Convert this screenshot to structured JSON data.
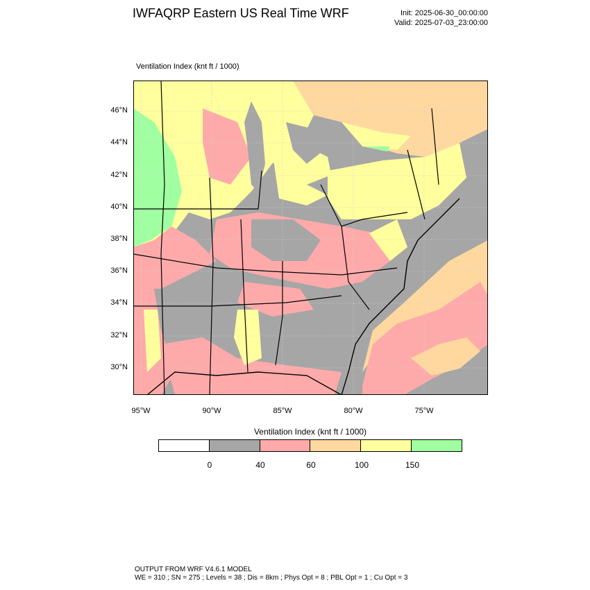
{
  "header": {
    "title": "IWFAQRP Eastern US Real Time WRF",
    "init": "Init: 2025-06-30_00:00:00",
    "valid": "Valid: 2025-07-03_23:00:00"
  },
  "map": {
    "subtitle": "Ventilation Index   (knt ft / 1000)",
    "lat_labels": [
      "46°N",
      "44°N",
      "42°N",
      "40°N",
      "38°N",
      "36°N",
      "34°N",
      "32°N",
      "30°N"
    ],
    "lon_labels": [
      "95°W",
      "90°W",
      "85°W",
      "80°W",
      "75°W"
    ]
  },
  "colorbar": {
    "title": "Ventilation Index  (knt ft / 1000)",
    "colors": [
      "#ffffff",
      "#a6a6a6",
      "#ffaaaa",
      "#ffd8a0",
      "#ffff9e",
      "#a0ffa0"
    ],
    "ticks": [
      "0",
      "40",
      "60",
      "100",
      "150"
    ]
  },
  "legend_colors": {
    "land_gray": "#a6a6a6",
    "pink": "#ffaaaa",
    "orange": "#ffd8a0",
    "yellow": "#ffff9e",
    "green": "#a0ffa0"
  },
  "footer": {
    "line1": "OUTPUT FROM WRF V4.6.1 MODEL",
    "line2": "WE = 310 ; SN = 275 ; Levels = 38 ; Dis = 8km ; Phys Opt = 8 ; PBL Opt = 1 ; Cu Opt = 3"
  }
}
